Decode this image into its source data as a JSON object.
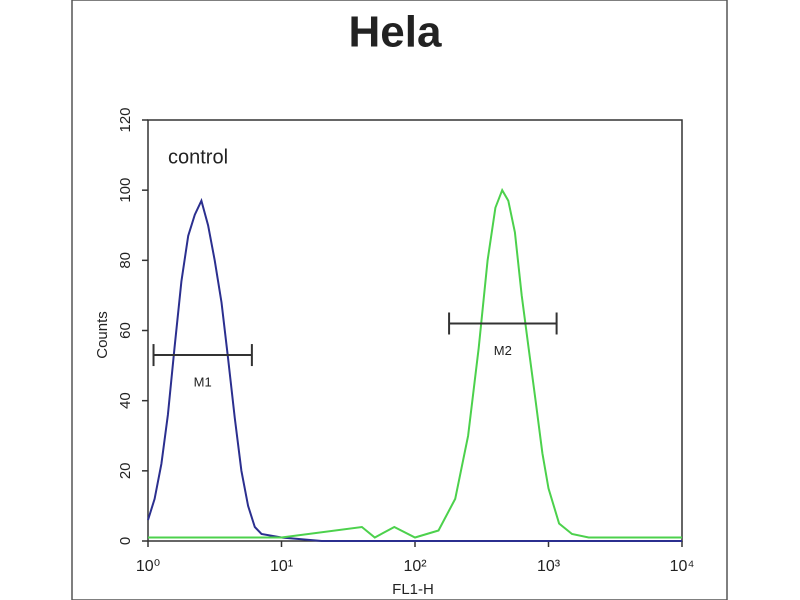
{
  "chart_data": {
    "type": "line",
    "title": "Hela",
    "annotation": "control",
    "x_label": "FL1-H",
    "y_label": "Counts",
    "log_x": true,
    "xlim": [
      1,
      10000
    ],
    "xticks": [
      {
        "value": 1,
        "label": "10⁰"
      },
      {
        "value": 10,
        "label": "10¹"
      },
      {
        "value": 100,
        "label": "10²"
      },
      {
        "value": 1000,
        "label": "10³"
      },
      {
        "value": 10000,
        "label": "10⁴"
      }
    ],
    "ylim": [
      0,
      120
    ],
    "yticks": [
      0,
      20,
      40,
      60,
      80,
      100,
      120
    ],
    "series": [
      {
        "color": "#2b2f8f",
        "x": [
          1,
          1.12,
          1.26,
          1.41,
          1.58,
          1.78,
          2,
          2.24,
          2.51,
          2.82,
          3.16,
          3.55,
          3.98,
          4.47,
          5.01,
          5.62,
          6.31,
          7.08,
          10,
          20,
          100,
          10000
        ],
        "values": [
          6,
          12,
          22,
          36,
          55,
          74,
          87,
          93,
          97,
          90,
          80,
          68,
          52,
          35,
          20,
          10,
          4,
          2,
          1,
          0,
          0,
          0
        ]
      },
      {
        "color": "#4cd14c",
        "x": [
          1,
          10,
          40,
          50,
          70,
          100,
          150,
          200,
          250,
          300,
          350,
          400,
          450,
          500,
          560,
          630,
          710,
          800,
          900,
          1000,
          1200,
          1500,
          2000,
          10000
        ],
        "values": [
          1,
          1,
          4,
          1,
          4,
          1,
          3,
          12,
          30,
          55,
          80,
          95,
          100,
          97,
          88,
          70,
          55,
          40,
          25,
          15,
          5,
          2,
          1,
          1
        ]
      }
    ],
    "markers": [
      {
        "label": "M1",
        "x": [
          1.1,
          6
        ],
        "y": 53
      },
      {
        "label": "M2",
        "x": [
          180,
          1150
        ],
        "y": 62
      }
    ]
  }
}
